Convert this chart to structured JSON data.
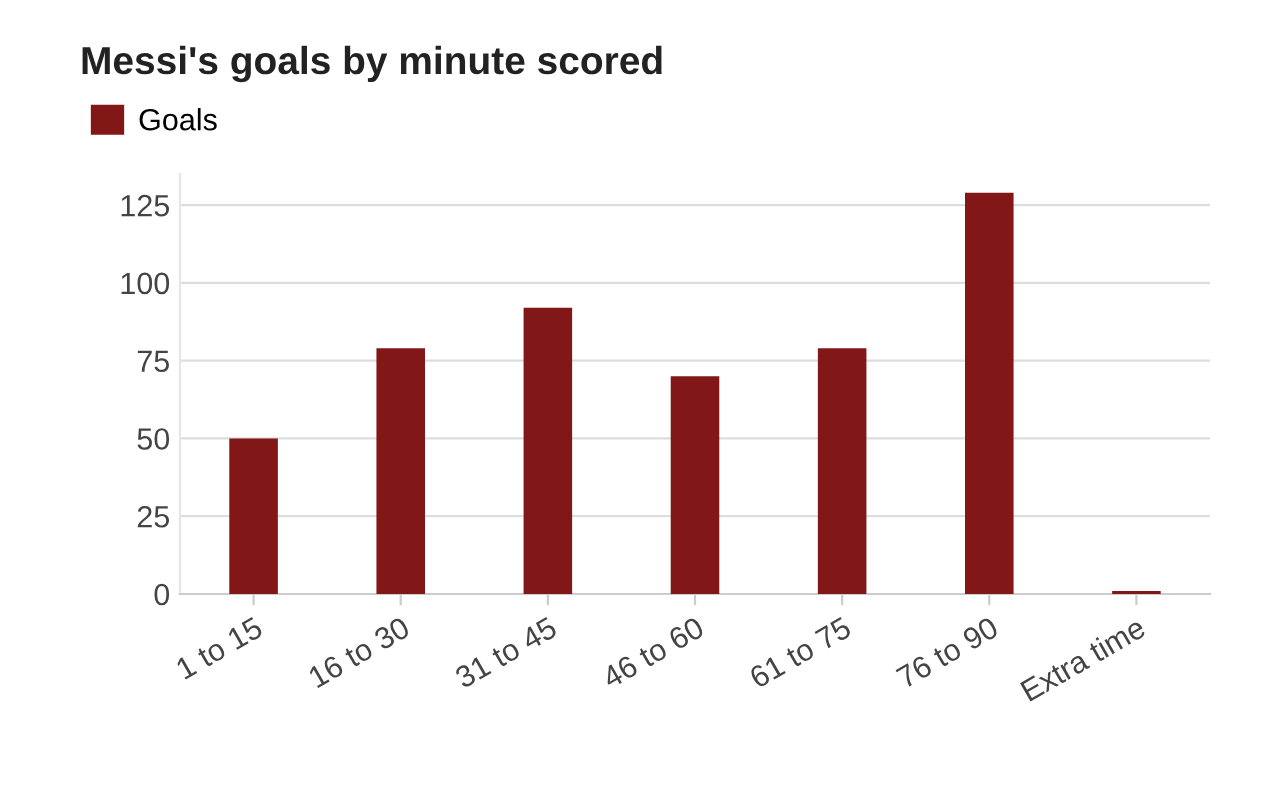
{
  "chart_data": {
    "type": "bar",
    "title": "Messi's goals by minute scored",
    "categories": [
      "1 to 15",
      "16 to 30",
      "31 to 45",
      "46 to 60",
      "61 to 75",
      "76 to 90",
      "Extra time"
    ],
    "series": [
      {
        "name": "Goals",
        "color": "#821717",
        "values": [
          50,
          79,
          92,
          70,
          79,
          129,
          1
        ]
      }
    ],
    "ylim": [
      0,
      135
    ],
    "yticks": [
      0,
      25,
      50,
      75,
      100,
      125
    ],
    "grid": "y",
    "legend": "top left"
  }
}
